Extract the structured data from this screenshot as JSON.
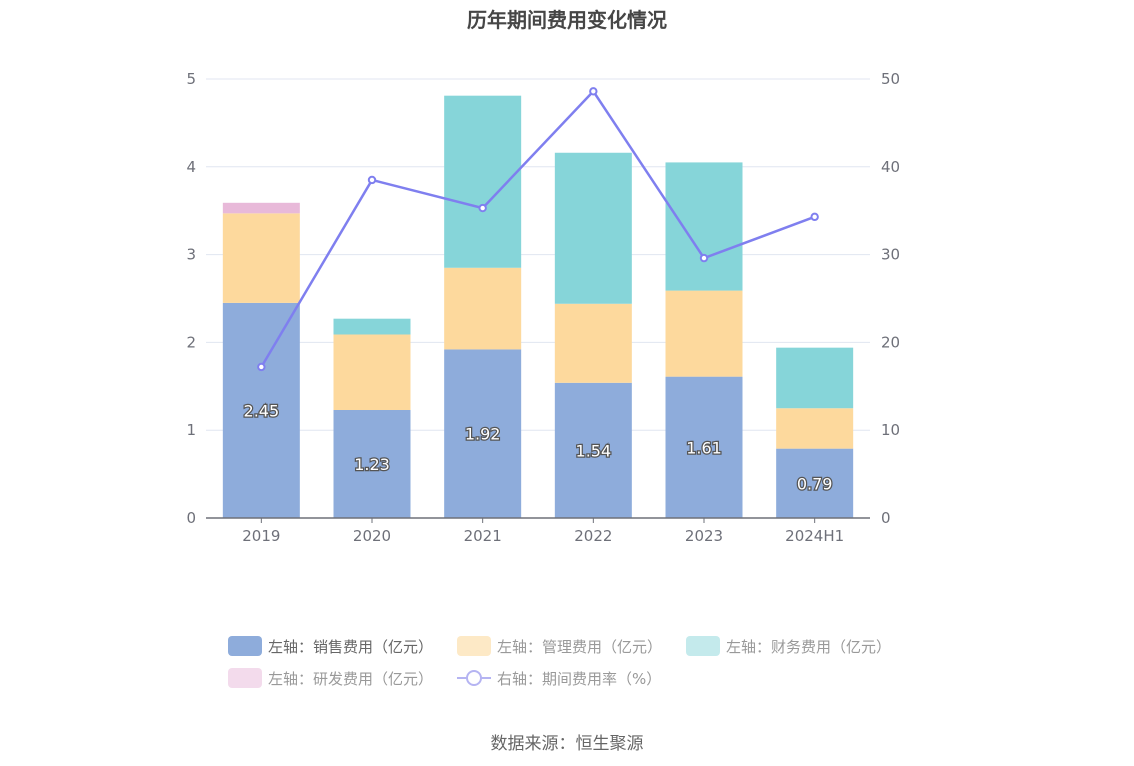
{
  "chart_data": {
    "type": "bar",
    "title": "历年期间费用变化情况",
    "categories": [
      "2019",
      "2020",
      "2021",
      "2022",
      "2023",
      "2024H1"
    ],
    "stacked": true,
    "left_axis": {
      "ylim": [
        0,
        5
      ],
      "ticks": [
        "0",
        "1",
        "2",
        "3",
        "4",
        "5"
      ]
    },
    "right_axis": {
      "ylim": [
        0,
        50
      ],
      "ticks": [
        "0",
        "10",
        "20",
        "30",
        "40",
        "50"
      ]
    },
    "grid": true,
    "series": [
      {
        "name": "左轴：销售费用（亿元）",
        "type": "bar",
        "axis": "left",
        "color": "#8eacdb",
        "values": [
          2.45,
          1.23,
          1.92,
          1.54,
          1.61,
          0.79
        ],
        "labels": [
          "2.45",
          "1.23",
          "1.92",
          "1.54",
          "1.61",
          "0.79"
        ]
      },
      {
        "name": "左轴：管理费用（亿元）",
        "type": "bar",
        "axis": "left",
        "color": "#fdd99d",
        "values": [
          1.02,
          0.86,
          0.93,
          0.9,
          0.98,
          0.46
        ]
      },
      {
        "name": "左轴：财务费用（亿元）",
        "type": "bar",
        "axis": "left",
        "color": "#86d5d9",
        "values": [
          0.0,
          0.18,
          1.96,
          1.72,
          1.46,
          0.69
        ]
      },
      {
        "name": "左轴：研发费用（亿元）",
        "type": "bar",
        "axis": "left",
        "color": "#e8b9d9",
        "values": [
          0.12,
          0.0,
          0.0,
          0.0,
          0.0,
          0.0
        ]
      },
      {
        "name": "右轴：期间费用率（%）",
        "type": "line",
        "axis": "right",
        "color": "#7f7fef",
        "values": [
          17.2,
          38.5,
          35.3,
          48.6,
          29.6,
          34.3
        ]
      }
    ],
    "legend_position": "bottom",
    "source": "数据来源：恒生聚源"
  }
}
